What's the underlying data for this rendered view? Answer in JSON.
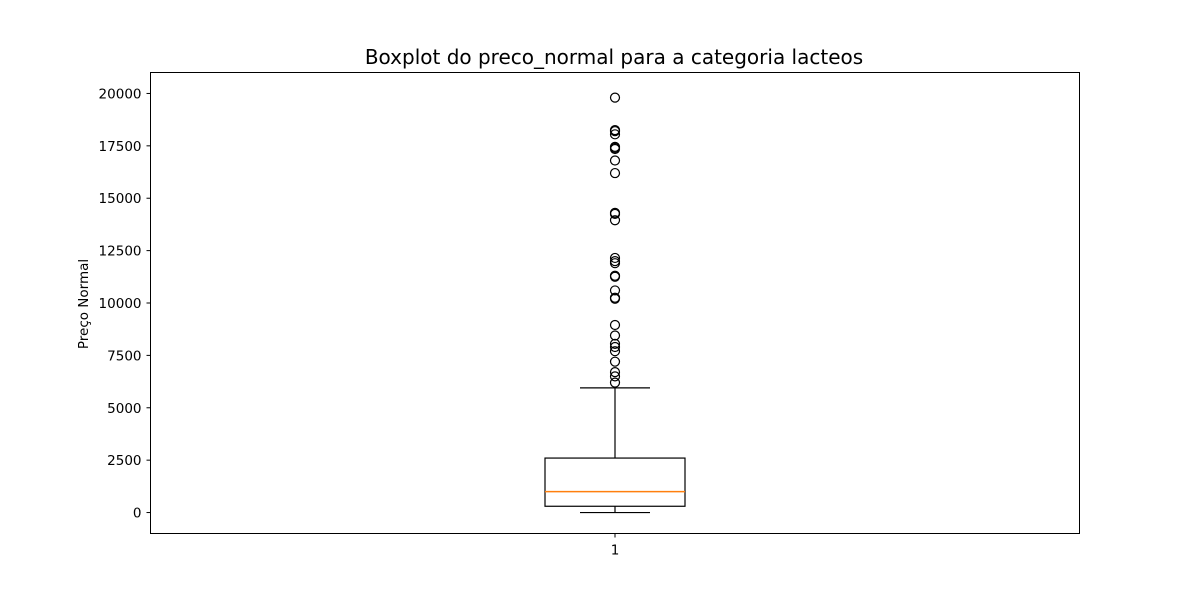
{
  "chart_data": {
    "type": "boxplot",
    "title": "Boxplot do preco_normal para a categoria lacteos",
    "xlabel": "",
    "ylabel": "Preço Normal",
    "categories": [
      "1"
    ],
    "ylim": [
      -1000,
      21000
    ],
    "yticks": [
      0,
      2500,
      5000,
      7500,
      10000,
      12500,
      15000,
      17500,
      20000
    ],
    "ytick_labels": [
      "0",
      "2500",
      "5000",
      "7500",
      "10000",
      "12500",
      "15000",
      "17500",
      "20000"
    ],
    "grid": false,
    "box": {
      "whisker_low": 0,
      "q1": 300,
      "median": 1000,
      "q3": 2600,
      "whisker_high": 5950
    },
    "outliers": [
      6200,
      6500,
      6700,
      7200,
      7700,
      7900,
      8050,
      8450,
      8950,
      10200,
      10250,
      10600,
      11250,
      11300,
      11900,
      12000,
      12150,
      13950,
      14250,
      14300,
      16200,
      16800,
      17350,
      17400,
      17450,
      18050,
      18200,
      18250,
      19800
    ],
    "colors": {
      "box": "#000000",
      "median": "#ff7f0e",
      "outlier_edge": "#000000"
    }
  }
}
